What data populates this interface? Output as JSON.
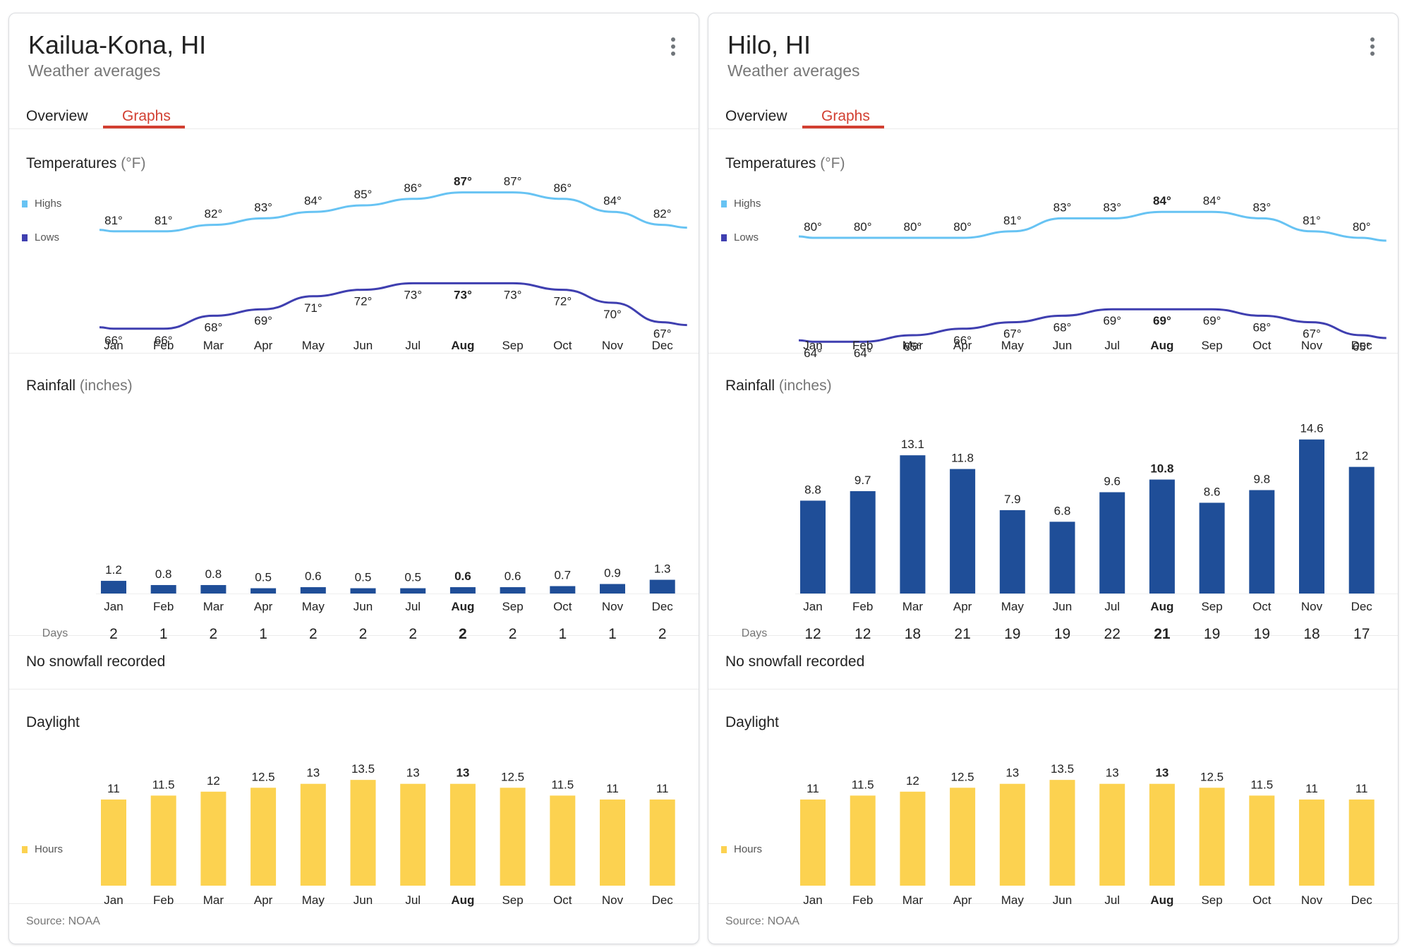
{
  "months": [
    "Jan",
    "Feb",
    "Mar",
    "Apr",
    "May",
    "Jun",
    "Jul",
    "Aug",
    "Sep",
    "Oct",
    "Nov",
    "Dec"
  ],
  "highlight_month_index": 7,
  "tabs": {
    "overview": "Overview",
    "graphs": "Graphs",
    "active": "graphs"
  },
  "labels": {
    "subtitle": "Weather averages",
    "temps_title": "Temperatures",
    "temps_unit": "(°F)",
    "rain_title": "Rainfall",
    "rain_unit": "(inches)",
    "days_label": "Days",
    "snow_text": "No snowfall recorded",
    "daylight_title": "Daylight",
    "legend_highs": "Highs",
    "legend_lows": "Lows",
    "legend_hours": "Hours",
    "source": "Source: NOAA",
    "degree_suffix": "°"
  },
  "colors": {
    "highs": "#67c3f3",
    "lows": "#3f3fb0",
    "rain": "#1f4e98",
    "daylight": "#fcd250",
    "accent": "#d23f31"
  },
  "cards": [
    {
      "title": "Kailua-Kona, HI"
    },
    {
      "title": "Hilo, HI"
    }
  ],
  "chart_data": [
    {
      "location": "Kailua-Kona, HI",
      "type": "line",
      "title": "Temperatures (°F)",
      "categories": [
        "Jan",
        "Feb",
        "Mar",
        "Apr",
        "May",
        "Jun",
        "Jul",
        "Aug",
        "Sep",
        "Oct",
        "Nov",
        "Dec"
      ],
      "series": [
        {
          "name": "Highs",
          "values": [
            81,
            81,
            82,
            83,
            84,
            85,
            86,
            87,
            87,
            86,
            84,
            82
          ]
        },
        {
          "name": "Lows",
          "values": [
            66,
            66,
            68,
            69,
            71,
            72,
            73,
            73,
            73,
            72,
            70,
            67
          ]
        }
      ],
      "legend": "left"
    },
    {
      "location": "Kailua-Kona, HI",
      "type": "bar",
      "title": "Rainfall (inches)",
      "categories": [
        "Jan",
        "Feb",
        "Mar",
        "Apr",
        "May",
        "Jun",
        "Jul",
        "Aug",
        "Sep",
        "Oct",
        "Nov",
        "Dec"
      ],
      "values": [
        1.2,
        0.8,
        0.8,
        0.5,
        0.6,
        0.5,
        0.5,
        0.6,
        0.6,
        0.7,
        0.9,
        1.3
      ],
      "rain_days": [
        2,
        1,
        2,
        1,
        2,
        2,
        2,
        2,
        2,
        1,
        1,
        2
      ],
      "ylim": [
        0,
        16
      ]
    },
    {
      "location": "Kailua-Kona, HI",
      "type": "bar",
      "title": "Daylight",
      "categories": [
        "Jan",
        "Feb",
        "Mar",
        "Apr",
        "May",
        "Jun",
        "Jul",
        "Aug",
        "Sep",
        "Oct",
        "Nov",
        "Dec"
      ],
      "series": [
        {
          "name": "Hours",
          "values": [
            11,
            11.5,
            12,
            12.5,
            13,
            13.5,
            13,
            13,
            12.5,
            11.5,
            11,
            11
          ]
        }
      ],
      "legend": "left"
    },
    {
      "location": "Hilo, HI",
      "type": "line",
      "title": "Temperatures (°F)",
      "categories": [
        "Jan",
        "Feb",
        "Mar",
        "Apr",
        "May",
        "Jun",
        "Jul",
        "Aug",
        "Sep",
        "Oct",
        "Nov",
        "Dec"
      ],
      "series": [
        {
          "name": "Highs",
          "values": [
            80,
            80,
            80,
            80,
            81,
            83,
            83,
            84,
            84,
            83,
            81,
            80
          ]
        },
        {
          "name": "Lows",
          "values": [
            64,
            64,
            65,
            66,
            67,
            68,
            69,
            69,
            69,
            68,
            67,
            65
          ]
        }
      ],
      "legend": "left"
    },
    {
      "location": "Hilo, HI",
      "type": "bar",
      "title": "Rainfall (inches)",
      "categories": [
        "Jan",
        "Feb",
        "Mar",
        "Apr",
        "May",
        "Jun",
        "Jul",
        "Aug",
        "Sep",
        "Oct",
        "Nov",
        "Dec"
      ],
      "values": [
        8.8,
        9.7,
        13.1,
        11.8,
        7.9,
        6.8,
        9.6,
        10.8,
        8.6,
        9.8,
        14.6,
        12
      ],
      "rain_days": [
        12,
        12,
        18,
        21,
        19,
        19,
        22,
        21,
        19,
        19,
        18,
        17
      ],
      "ylim": [
        0,
        16
      ]
    },
    {
      "location": "Hilo, HI",
      "type": "bar",
      "title": "Daylight",
      "categories": [
        "Jan",
        "Feb",
        "Mar",
        "Apr",
        "May",
        "Jun",
        "Jul",
        "Aug",
        "Sep",
        "Oct",
        "Nov",
        "Dec"
      ],
      "series": [
        {
          "name": "Hours",
          "values": [
            11,
            11.5,
            12,
            12.5,
            13,
            13.5,
            13,
            13,
            12.5,
            11.5,
            11,
            11
          ]
        }
      ],
      "legend": "left"
    }
  ]
}
